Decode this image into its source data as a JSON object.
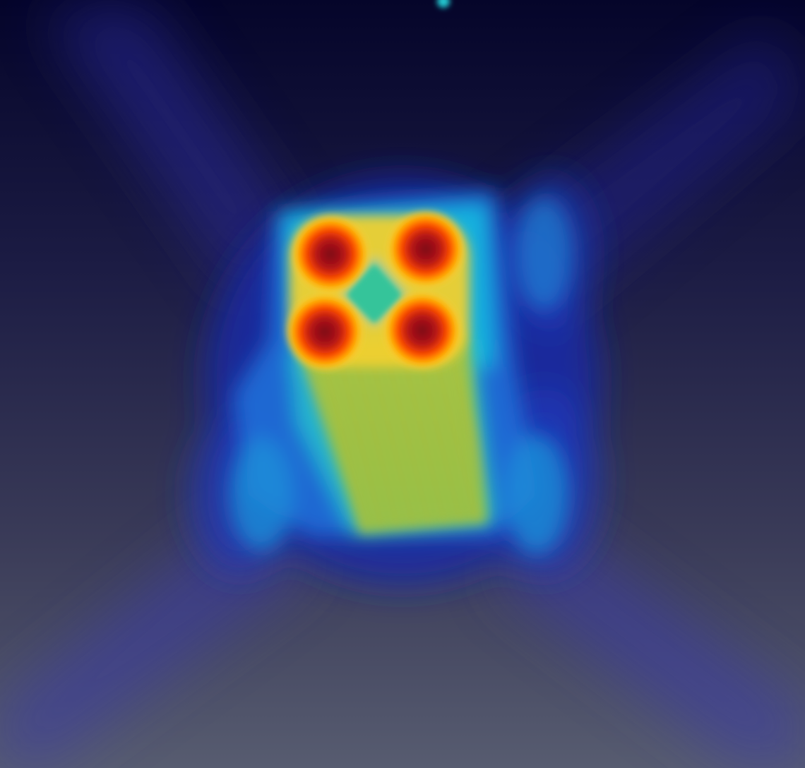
{
  "scene": {
    "kind": "volume-rendering",
    "colormap": "jet",
    "colormap_stops": [
      "#00007f",
      "#0000ff",
      "#00bfff",
      "#40e0a0",
      "#c8d040",
      "#ffb000",
      "#ff4000",
      "#7f0000"
    ],
    "background": {
      "top_color": "#05052a",
      "bottom_color": "#555a6e"
    },
    "hotspot_count": 4,
    "hotspot_color": "#8a0f10"
  }
}
